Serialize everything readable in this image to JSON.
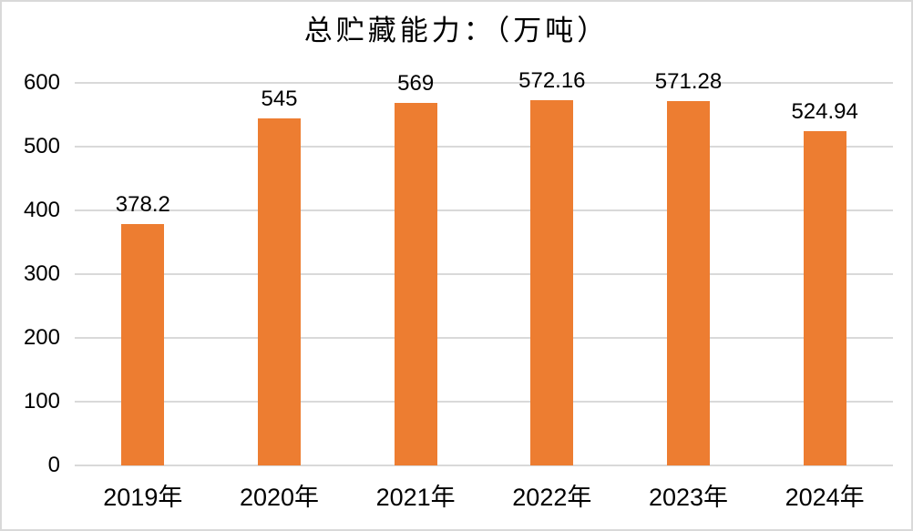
{
  "chart_data": {
    "type": "bar",
    "title": "总贮藏能力：（万吨）",
    "categories": [
      "2019年",
      "2020年",
      "2021年",
      "2022年",
      "2023年",
      "2024年"
    ],
    "values": [
      378.2,
      545,
      569,
      572.16,
      571.28,
      524.94
    ],
    "xlabel": "",
    "ylabel": "",
    "ylim": [
      0,
      600
    ],
    "y_ticks": [
      0,
      100,
      200,
      300,
      400,
      500,
      600
    ],
    "grid": "horizontal",
    "legend": "none",
    "bar_color": "#ED7D31",
    "gridline_color": "#D9D9D9",
    "axis_line_color": "#D9D9D9",
    "text_color": "#000000",
    "background_color": "#FFFFFF",
    "border_color": "#D9D9D9"
  }
}
